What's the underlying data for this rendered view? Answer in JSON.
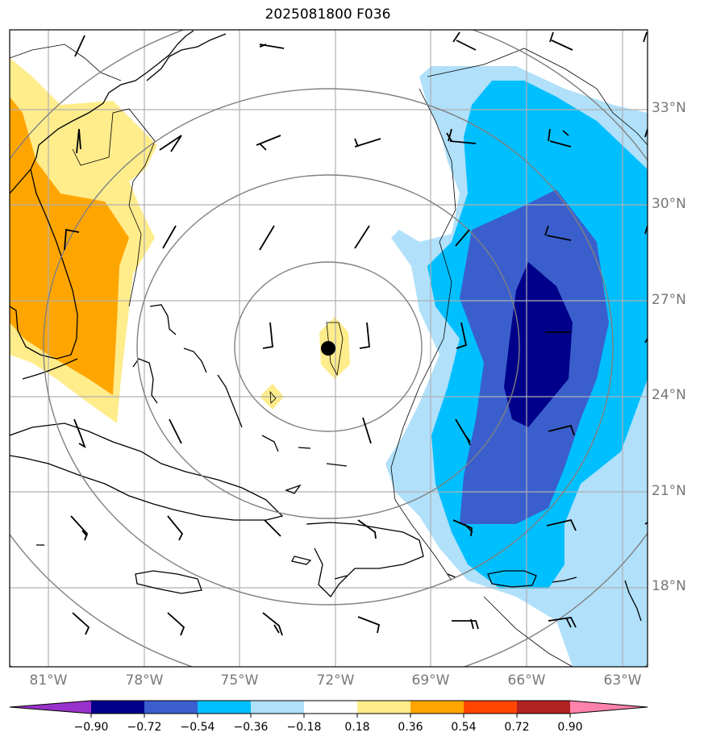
{
  "title": "2025081800 F036",
  "map": {
    "lat_labels": [
      {
        "text": "33°N",
        "lat": 33
      },
      {
        "text": "30°N",
        "lat": 30
      },
      {
        "text": "27°N",
        "lat": 27
      },
      {
        "text": "24°N",
        "lat": 24
      },
      {
        "text": "21°N",
        "lat": 21
      },
      {
        "text": "18°N",
        "lat": 18
      }
    ],
    "lon_labels": [
      {
        "text": "81°W",
        "lon": -81
      },
      {
        "text": "78°W",
        "lon": -78
      },
      {
        "text": "75°W",
        "lon": -75
      },
      {
        "text": "72°W",
        "lon": -72
      },
      {
        "text": "69°W",
        "lon": -69
      },
      {
        "text": "66°W",
        "lon": -66
      },
      {
        "text": "63°W",
        "lon": -63
      }
    ],
    "center_marker": {
      "lat": 25.5,
      "lon": -72.2
    },
    "range_rings": 5
  },
  "colorbar": {
    "ticks": [
      "−0.90",
      "−0.72",
      "−0.54",
      "−0.36",
      "−0.18",
      "0.18",
      "0.36",
      "0.54",
      "0.72",
      "0.90"
    ],
    "colors": [
      "#9932cc",
      "#00008b",
      "#3a5fcd",
      "#00bfff",
      "#b0e0fa",
      "#ffffff",
      "#ffec8b",
      "#ffa500",
      "#ff4500",
      "#b22222",
      "#ff82ab"
    ],
    "extend": "both"
  },
  "colors": {
    "frame": "#000000",
    "grid": "#b0b0b0",
    "rings": "#808080",
    "coast": "#000000"
  }
}
